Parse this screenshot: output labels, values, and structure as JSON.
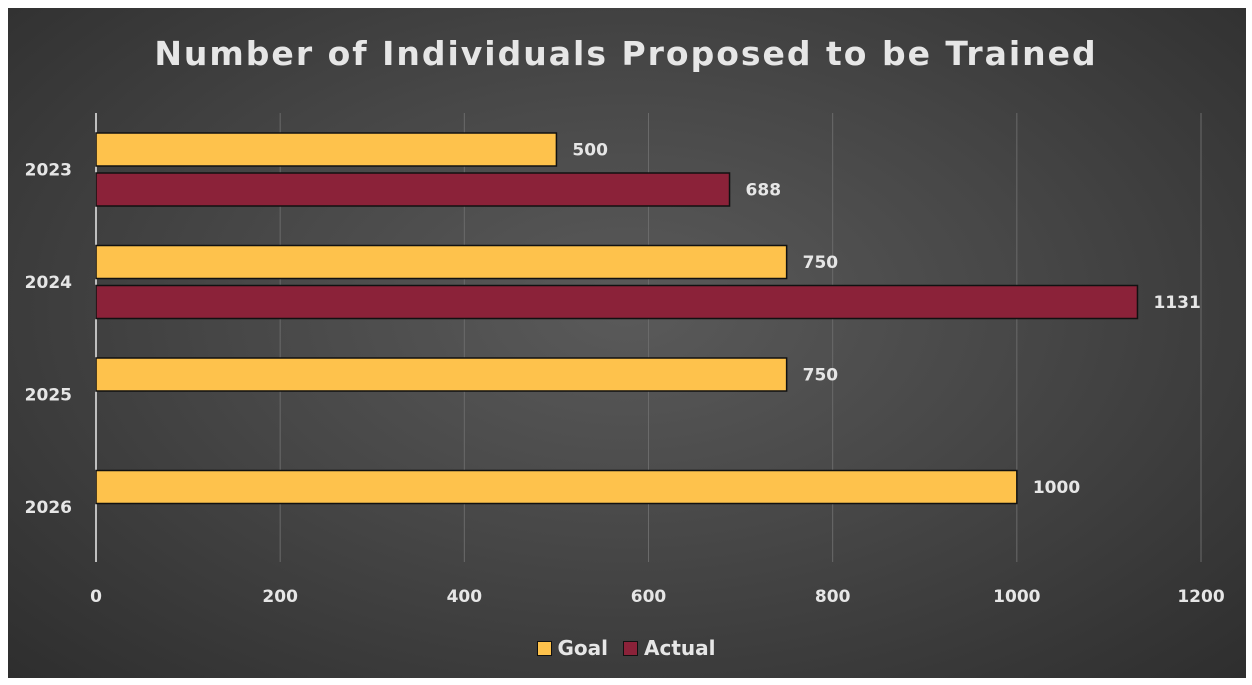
{
  "chart_data": {
    "type": "bar",
    "orientation": "horizontal",
    "title": "Number of Individuals Proposed to be Trained",
    "categories": [
      "2023",
      "2024",
      "2025",
      "2026"
    ],
    "series": [
      {
        "name": "Goal",
        "values": [
          500,
          750,
          750,
          1000
        ],
        "color": "#fec24c"
      },
      {
        "name": "Actual",
        "values": [
          688,
          1131,
          null,
          null
        ],
        "color": "#8b2239"
      }
    ],
    "xlim": [
      0,
      1200
    ],
    "xticks": [
      "0",
      "200",
      "400",
      "600",
      "800",
      "1000",
      "1200"
    ],
    "grid": true,
    "legend": "bottom",
    "data_labels": true
  }
}
